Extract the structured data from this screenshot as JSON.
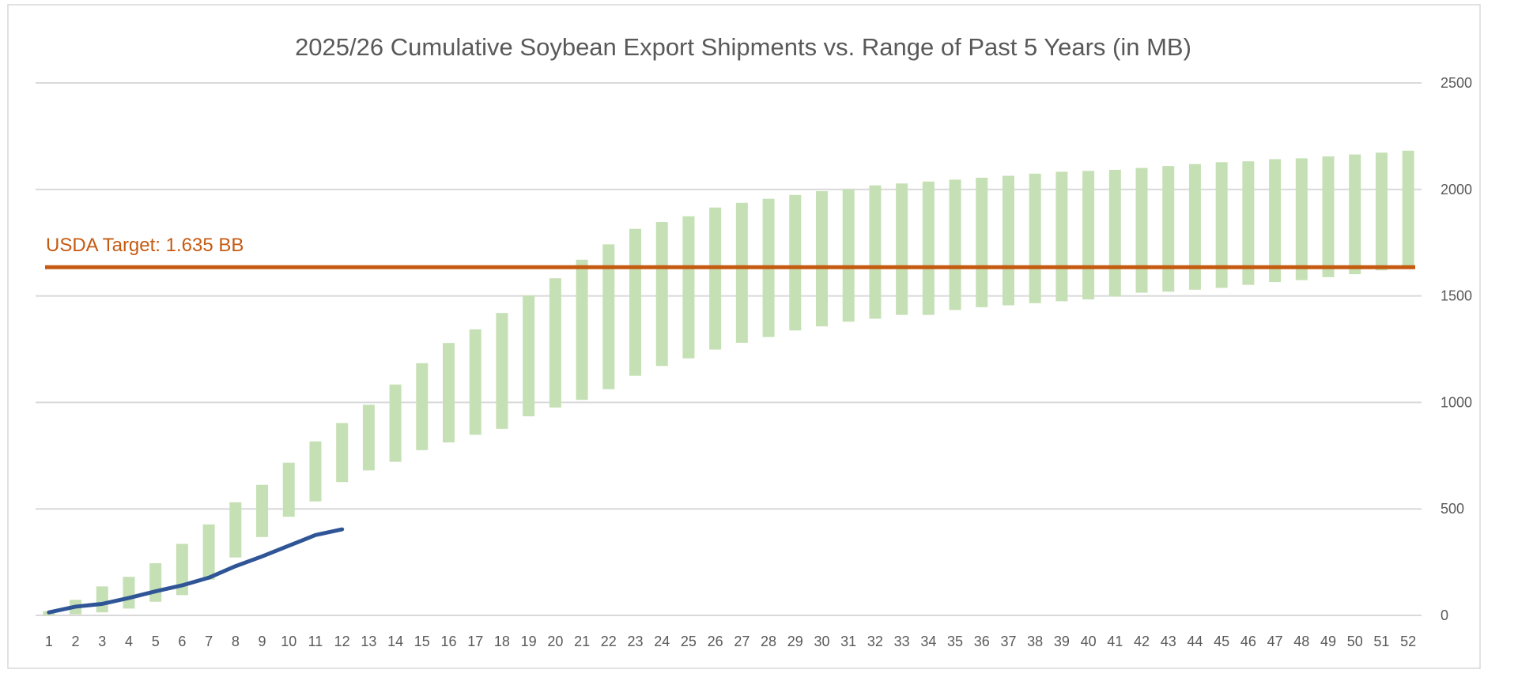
{
  "chart_data": {
    "type": "bar",
    "title": "2025/26 Cumulative Soybean Export Shipments vs. Range of Past 5 Years (in MB)",
    "xlabel": "",
    "ylabel": "",
    "categories": [
      1,
      2,
      3,
      4,
      5,
      6,
      7,
      8,
      9,
      10,
      11,
      12,
      13,
      14,
      15,
      16,
      17,
      18,
      19,
      20,
      21,
      22,
      23,
      24,
      25,
      26,
      27,
      28,
      29,
      30,
      31,
      32,
      33,
      34,
      35,
      36,
      37,
      38,
      39,
      40,
      41,
      42,
      43,
      44,
      45,
      46,
      47,
      48,
      49,
      50,
      51,
      52
    ],
    "ylim": [
      0,
      2500
    ],
    "yticks": [
      0,
      500,
      1000,
      1500,
      2000,
      2500
    ],
    "y_axis_side": "right",
    "grid": true,
    "range_bars": {
      "color": "#c5e0b4",
      "low": [
        0,
        5,
        14,
        32,
        64,
        95,
        168,
        272,
        368,
        463,
        535,
        626,
        681,
        721,
        776,
        812,
        848,
        876,
        935,
        976,
        1012,
        1062,
        1125,
        1171,
        1207,
        1248,
        1280,
        1307,
        1338,
        1357,
        1379,
        1393,
        1411,
        1411,
        1434,
        1447,
        1456,
        1466,
        1475,
        1484,
        1497,
        1515,
        1520,
        1529,
        1538,
        1552,
        1565,
        1574,
        1588,
        1602,
        1620,
        1633
      ],
      "high": [
        20,
        73,
        136,
        181,
        245,
        336,
        427,
        531,
        613,
        717,
        817,
        903,
        989,
        1084,
        1184,
        1279,
        1343,
        1420,
        1502,
        1583,
        1670,
        1742,
        1815,
        1847,
        1874,
        1915,
        1937,
        1956,
        1974,
        1992,
        2001,
        2019,
        2028,
        2037,
        2046,
        2055,
        2064,
        2074,
        2083,
        2087,
        2092,
        2101,
        2110,
        2119,
        2128,
        2132,
        2142,
        2146,
        2155,
        2164,
        2173,
        2182
      ]
    },
    "current_series": {
      "color": "#2f5597",
      "values": [
        14,
        41,
        54,
        82,
        113,
        141,
        177,
        231,
        277,
        327,
        377,
        404
      ]
    },
    "target_line": {
      "value": 1635,
      "label": "USDA Target: 1.635 BB",
      "color": "#c55a11"
    }
  }
}
